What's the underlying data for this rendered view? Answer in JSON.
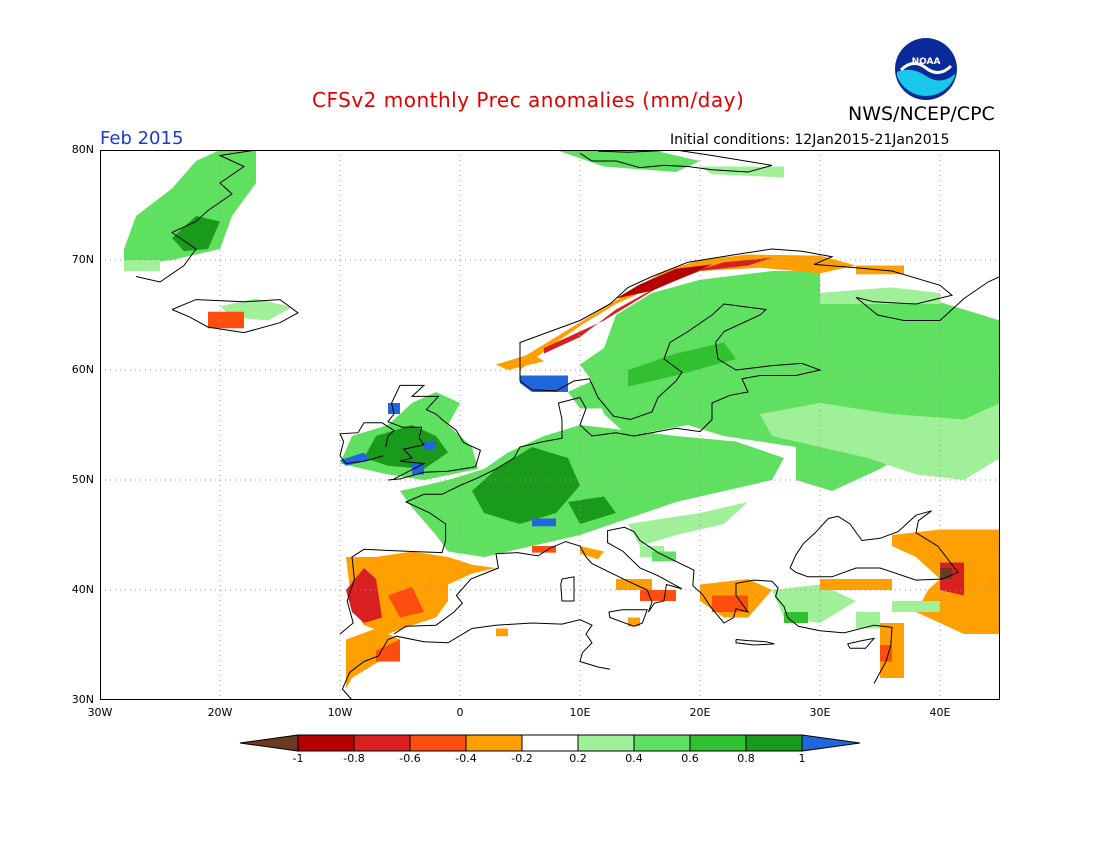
{
  "header": {
    "title": "CFSv2 monthly Prec anomalies (mm/day)",
    "agency": "NWS/NCEP/CPC",
    "period": "Feb 2015",
    "initial_conditions": "Initial conditions: 12Jan2015-21Jan2015",
    "logo_text": "NOAA"
  },
  "map": {
    "lon_range": [
      -30,
      45
    ],
    "lat_range": [
      30,
      80
    ],
    "lat_labels": [
      "80N",
      "70N",
      "60N",
      "50N",
      "40N",
      "30N"
    ],
    "lon_labels": [
      "30W",
      "20W",
      "10W",
      "0",
      "10E",
      "20E",
      "30E",
      "40E"
    ],
    "grid": "dotted"
  },
  "colorbar": {
    "tick_labels": [
      "-1",
      "-0.8",
      "-0.6",
      "-0.4",
      "-0.2",
      "0.2",
      "0.4",
      "0.6",
      "0.8",
      "1"
    ],
    "colors": [
      "#6b3a22",
      "#b40000",
      "#d82020",
      "#ff4d10",
      "#ffa000",
      "#ffffff",
      "#a0f09a",
      "#60e060",
      "#30c030",
      "#1a9a1a",
      "#2266dd"
    ]
  }
}
